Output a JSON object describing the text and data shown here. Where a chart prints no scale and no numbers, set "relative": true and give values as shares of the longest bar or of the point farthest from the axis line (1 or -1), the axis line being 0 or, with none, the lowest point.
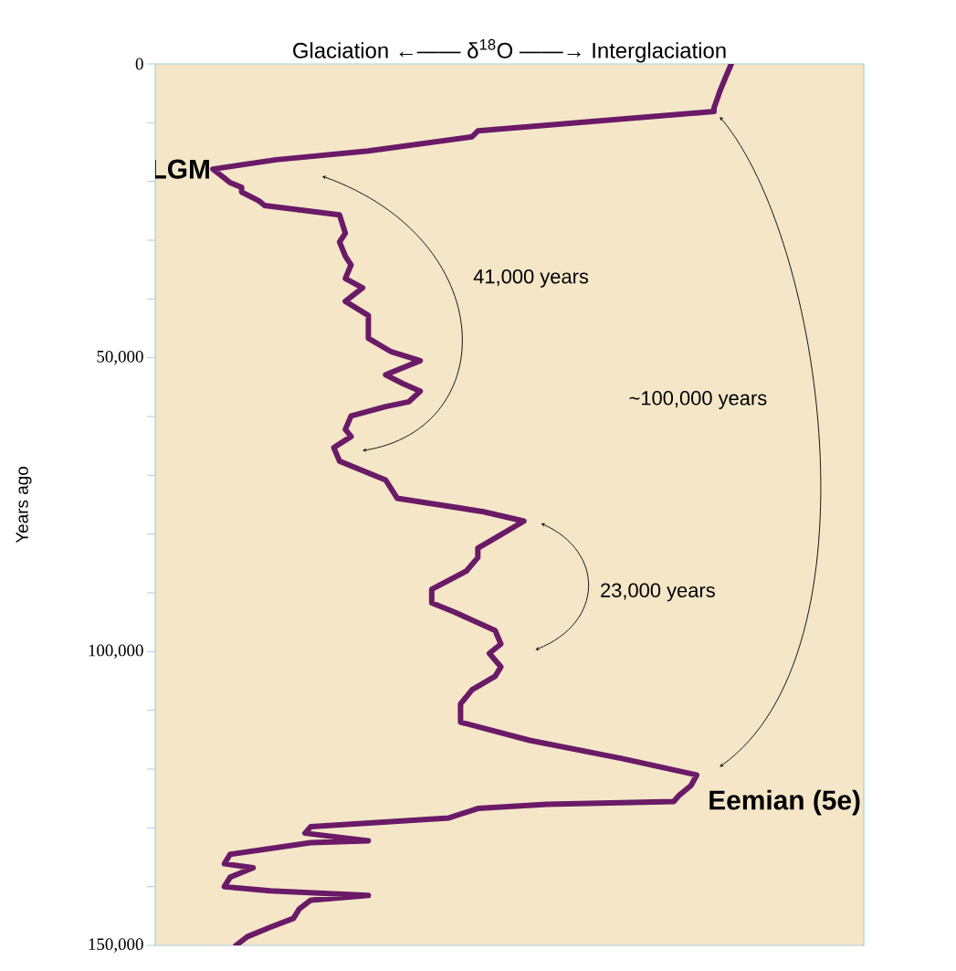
{
  "chart_data": {
    "type": "line",
    "orientation": "horizontal",
    "relative": true,
    "xlabel": "Glaciation ←—— δ$^{18}$O ——→ Interglaciation",
    "ylabel": "Years ago",
    "ylim": [
      150000,
      0
    ],
    "yticks": [
      0,
      {
        "value": 10000,
        "label": null
      },
      {
        "value": 20000,
        "label": null
      },
      {
        "value": 30000,
        "label": null
      },
      {
        "value": 40000,
        "label": null
      },
      {
        "value": 50000,
        "label": "50,000"
      },
      {
        "value": 60000,
        "label": null
      },
      {
        "value": 70000,
        "label": null
      },
      {
        "value": 80000,
        "label": null
      },
      {
        "value": 90000,
        "label": null
      },
      {
        "value": 100000,
        "label": "100,000"
      },
      {
        "value": 110000,
        "label": null
      },
      {
        "value": 120000,
        "label": null
      },
      {
        "value": 130000,
        "label": null
      },
      {
        "value": 140000,
        "label": null
      },
      {
        "value": 150000,
        "label": "150,000"
      }
    ],
    "series": [
      {
        "color": "#6a1a66",
        "x": [
          0,
          2300,
          4700,
          7500,
          8100,
          11400,
          12400,
          14800,
          16300,
          17900,
          19400,
          20200,
          21000,
          21800,
          23300,
          24100,
          25700,
          28800,
          30300,
          32700,
          34200,
          36500,
          38100,
          40400,
          42800,
          45100,
          46700,
          49000,
          50500,
          52900,
          54400,
          55700,
          57500,
          58300,
          59900,
          62200,
          63400,
          65300,
          67600,
          70800,
          73900,
          76200,
          77800,
          80100,
          82400,
          84000,
          86300,
          89400,
          91700,
          93300,
          96400,
          98700,
          100300,
          102600,
          104200,
          106500,
          108900,
          112000,
          115100,
          118200,
          121000,
          122800,
          124400,
          125500,
          126000,
          126700,
          128300,
          129800,
          130900,
          132200,
          132500,
          134500,
          136100,
          136800,
          138400,
          140000,
          140700,
          141500,
          142300,
          143800,
          145400,
          146900,
          148500,
          150000
        ],
        "values": [
          1.0,
          0.99,
          0.98,
          0.97,
          0.97,
          0.56,
          0.55,
          0.37,
          0.21,
          0.1,
          0.12,
          0.13,
          0.15,
          0.15,
          0.18,
          0.19,
          0.32,
          0.33,
          0.32,
          0.33,
          0.34,
          0.33,
          0.36,
          0.33,
          0.37,
          0.37,
          0.37,
          0.41,
          0.46,
          0.4,
          0.43,
          0.46,
          0.44,
          0.4,
          0.34,
          0.33,
          0.34,
          0.31,
          0.32,
          0.4,
          0.42,
          0.57,
          0.64,
          0.6,
          0.56,
          0.56,
          0.54,
          0.48,
          0.48,
          0.52,
          0.59,
          0.6,
          0.58,
          0.6,
          0.59,
          0.55,
          0.53,
          0.53,
          0.65,
          0.81,
          0.94,
          0.93,
          0.91,
          0.9,
          0.68,
          0.56,
          0.51,
          0.27,
          0.26,
          0.37,
          0.27,
          0.13,
          0.12,
          0.17,
          0.13,
          0.12,
          0.2,
          0.37,
          0.27,
          0.25,
          0.24,
          0.2,
          0.16,
          0.14
        ]
      }
    ],
    "annotations": [
      "41,000 years",
      "~100,000 years",
      "23,000 years",
      {
        "text": "LGM",
        "x": 0.1,
        "y": 17900
      },
      {
        "text": "Eemian (5e)",
        "x": 0.94,
        "y": 121000
      }
    ]
  }
}
